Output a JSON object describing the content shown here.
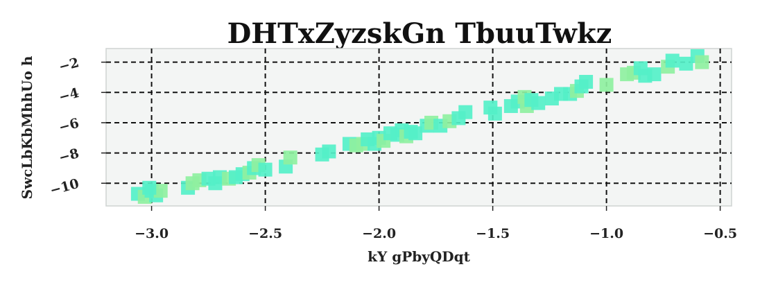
{
  "chart_data": {
    "type": "scatter",
    "title": "DHTxZyzskGn TbuuTwkz",
    "xlabel": "kY gPbyQDqt",
    "ylabel": "SwcLbKbMhhUo h",
    "xlim": [
      -3.2,
      -0.45
    ],
    "ylim": [
      -11.5,
      -1.1
    ],
    "x_ticks": [
      -3.0,
      -2.5,
      -2.0,
      -1.5,
      -1.0,
      -0.5
    ],
    "x_tick_labels": [
      "−3.0",
      "−2.5",
      "−2.0",
      "−1.5",
      "−1.0",
      "−0.5"
    ],
    "y_ticks": [
      -2,
      -4,
      -6,
      -8,
      -10
    ],
    "y_tick_labels": [
      "−2",
      "−4",
      "−6",
      "−8",
      "−10"
    ],
    "grid": true,
    "grid_style": "dashed",
    "marker": "square",
    "plot_background": "#f3f5f4",
    "colors": [
      "#55f0c8",
      "#8ff0a0"
    ],
    "points": [
      {
        "x": -3.06,
        "y": -10.7,
        "c": 0
      },
      {
        "x": -3.03,
        "y": -10.9,
        "c": 1
      },
      {
        "x": -3.0,
        "y": -10.5,
        "c": 0
      },
      {
        "x": -2.98,
        "y": -10.8,
        "c": 0
      },
      {
        "x": -2.96,
        "y": -10.5,
        "c": 1
      },
      {
        "x": -3.01,
        "y": -10.3,
        "c": 0
      },
      {
        "x": -2.84,
        "y": -10.3,
        "c": 0
      },
      {
        "x": -2.82,
        "y": -10.0,
        "c": 1
      },
      {
        "x": -2.79,
        "y": -9.8,
        "c": 1
      },
      {
        "x": -2.75,
        "y": -9.7,
        "c": 0
      },
      {
        "x": -2.72,
        "y": -10.0,
        "c": 0
      },
      {
        "x": -2.7,
        "y": -9.6,
        "c": 0
      },
      {
        "x": -2.66,
        "y": -9.7,
        "c": 1
      },
      {
        "x": -2.63,
        "y": -9.6,
        "c": 0
      },
      {
        "x": -2.6,
        "y": -9.4,
        "c": 0
      },
      {
        "x": -2.57,
        "y": -9.3,
        "c": 1
      },
      {
        "x": -2.55,
        "y": -9.0,
        "c": 0
      },
      {
        "x": -2.53,
        "y": -8.8,
        "c": 1
      },
      {
        "x": -2.5,
        "y": -9.1,
        "c": 0
      },
      {
        "x": -2.41,
        "y": -8.9,
        "c": 0
      },
      {
        "x": -2.39,
        "y": -8.3,
        "c": 1
      },
      {
        "x": -2.25,
        "y": -8.1,
        "c": 0
      },
      {
        "x": -2.22,
        "y": -7.9,
        "c": 0
      },
      {
        "x": -2.13,
        "y": -7.4,
        "c": 0
      },
      {
        "x": -2.1,
        "y": -7.5,
        "c": 1
      },
      {
        "x": -2.07,
        "y": -7.4,
        "c": 1
      },
      {
        "x": -2.05,
        "y": -7.1,
        "c": 0
      },
      {
        "x": -2.02,
        "y": -7.4,
        "c": 0
      },
      {
        "x": -2.0,
        "y": -7.0,
        "c": 0
      },
      {
        "x": -1.98,
        "y": -7.2,
        "c": 1
      },
      {
        "x": -1.95,
        "y": -6.7,
        "c": 0
      },
      {
        "x": -1.92,
        "y": -6.8,
        "c": 0
      },
      {
        "x": -1.9,
        "y": -6.5,
        "c": 0
      },
      {
        "x": -1.88,
        "y": -6.9,
        "c": 1
      },
      {
        "x": -1.86,
        "y": -6.6,
        "c": 0
      },
      {
        "x": -1.84,
        "y": -6.7,
        "c": 0
      },
      {
        "x": -1.79,
        "y": -6.2,
        "c": 0
      },
      {
        "x": -1.77,
        "y": -6.0,
        "c": 1
      },
      {
        "x": -1.73,
        "y": -6.2,
        "c": 0
      },
      {
        "x": -1.69,
        "y": -5.9,
        "c": 1
      },
      {
        "x": -1.65,
        "y": -5.7,
        "c": 0
      },
      {
        "x": -1.62,
        "y": -5.3,
        "c": 0
      },
      {
        "x": -1.51,
        "y": -5.0,
        "c": 0
      },
      {
        "x": -1.49,
        "y": -5.4,
        "c": 0
      },
      {
        "x": -1.42,
        "y": -4.9,
        "c": 0
      },
      {
        "x": -1.39,
        "y": -4.6,
        "c": 0
      },
      {
        "x": -1.36,
        "y": -4.3,
        "c": 1
      },
      {
        "x": -1.35,
        "y": -4.9,
        "c": 1
      },
      {
        "x": -1.33,
        "y": -4.5,
        "c": 0
      },
      {
        "x": -1.3,
        "y": -4.7,
        "c": 0
      },
      {
        "x": -1.24,
        "y": -4.4,
        "c": 0
      },
      {
        "x": -1.2,
        "y": -4.1,
        "c": 0
      },
      {
        "x": -1.16,
        "y": -4.1,
        "c": 0
      },
      {
        "x": -1.13,
        "y": -3.9,
        "c": 1
      },
      {
        "x": -1.11,
        "y": -3.6,
        "c": 0
      },
      {
        "x": -1.09,
        "y": -3.3,
        "c": 0
      },
      {
        "x": -1.0,
        "y": -3.5,
        "c": 1
      },
      {
        "x": -0.91,
        "y": -2.8,
        "c": 1
      },
      {
        "x": -0.88,
        "y": -2.7,
        "c": 1
      },
      {
        "x": -0.85,
        "y": -2.4,
        "c": 0
      },
      {
        "x": -0.83,
        "y": -2.9,
        "c": 0
      },
      {
        "x": -0.79,
        "y": -2.8,
        "c": 0
      },
      {
        "x": -0.73,
        "y": -2.3,
        "c": 1
      },
      {
        "x": -0.71,
        "y": -1.9,
        "c": 0
      },
      {
        "x": -0.65,
        "y": -2.1,
        "c": 0
      },
      {
        "x": -0.6,
        "y": -1.6,
        "c": 0
      },
      {
        "x": -0.58,
        "y": -2.0,
        "c": 1
      }
    ]
  }
}
